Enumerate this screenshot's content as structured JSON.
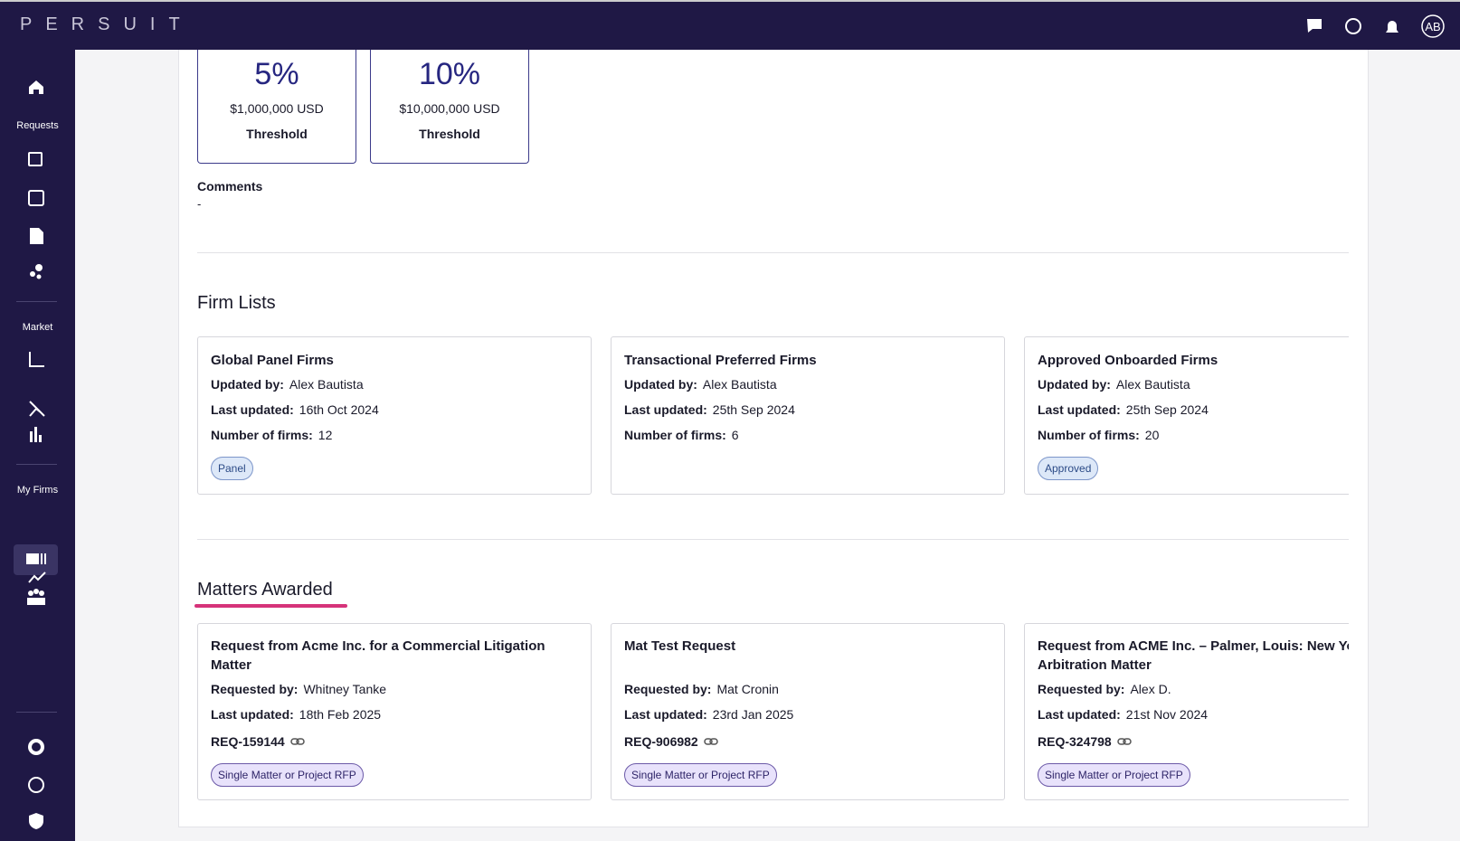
{
  "header": {
    "brand": "PERSUIT",
    "avatar": "AB"
  },
  "sidebar": {
    "sections": [
      "Requests",
      "Market",
      "My Firms"
    ]
  },
  "thresholds": [
    {
      "percent": "5%",
      "amount": "$1,000,000 USD",
      "label": "Threshold"
    },
    {
      "percent": "10%",
      "amount": "$10,000,000 USD",
      "label": "Threshold"
    }
  ],
  "comments": {
    "label": "Comments",
    "value": "-"
  },
  "firm_lists": {
    "title": "Firm Lists",
    "cards": [
      {
        "name": "Global Panel Firms",
        "fields": [
          {
            "label": "Updated by:",
            "value": "Alex Bautista"
          },
          {
            "label": "Last updated:",
            "value": "16th Oct 2024"
          },
          {
            "label": "Number of firms:",
            "value": "12"
          }
        ],
        "tag": "Panel"
      },
      {
        "name": "Transactional Preferred Firms",
        "fields": [
          {
            "label": "Updated by:",
            "value": "Alex Bautista"
          },
          {
            "label": "Last updated:",
            "value": "25th Sep 2024"
          },
          {
            "label": "Number of firms:",
            "value": "6"
          }
        ]
      },
      {
        "name": "Approved Onboarded Firms",
        "fields": [
          {
            "label": "Updated by:",
            "value": "Alex Bautista"
          },
          {
            "label": "Last updated:",
            "value": "25th Sep 2024"
          },
          {
            "label": "Number of firms:",
            "value": "20"
          }
        ],
        "tag": "Approved"
      }
    ]
  },
  "matters": {
    "title": "Matters Awarded",
    "cards": [
      {
        "name": "Request from Acme Inc. for a Commercial Litigation Matter",
        "fields": [
          {
            "label": "Requested by:",
            "value": "Whitney Tanke"
          },
          {
            "label": "Last updated:",
            "value": "18th Feb 2025"
          }
        ],
        "ref": "REQ-159144",
        "tag": "Single Matter or Project RFP"
      },
      {
        "name": "Mat Test Request",
        "fields": [
          {
            "label": "Requested by:",
            "value": "Mat Cronin"
          },
          {
            "label": "Last updated:",
            "value": "23rd Jan 2025"
          }
        ],
        "ref": "REQ-906982",
        "tag": "Single Matter or Project RFP"
      },
      {
        "name": "Request from ACME Inc. – Palmer, Louis: New York Arbitration Matter",
        "fields": [
          {
            "label": "Requested by:",
            "value": "Alex D."
          },
          {
            "label": "Last updated:",
            "value": "21st Nov 2024"
          }
        ],
        "ref": "REQ-324798",
        "tag": "Single Matter or Project RFP"
      }
    ]
  }
}
